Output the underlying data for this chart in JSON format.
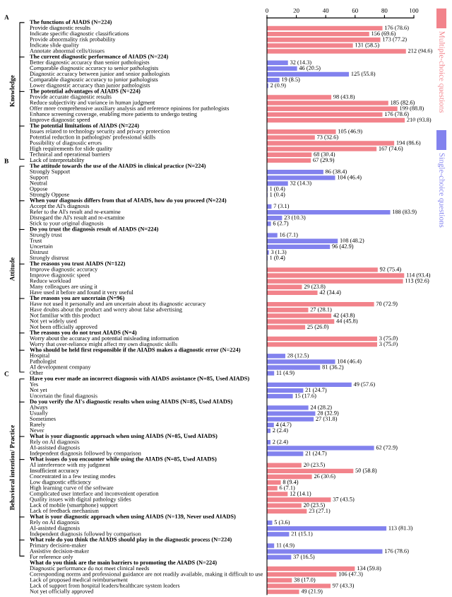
{
  "chart_data": {
    "type": "bar",
    "orientation": "horizontal",
    "categories": [
      "The functions of AIADS (N=224)",
      "Provide diagnostic results",
      "Indicate specific diagnostic classifications",
      "Provide abnormality risk probability",
      "Indicate slide quality",
      "Annotate abnormal cells/tissues",
      "The current diagnostic performance of AIADS (N=224)",
      "Better diagnostic accuracy than senior pathologists",
      "Comparable diagnostic accuracy to senior pathologists",
      "Diagnostic accuracy between junior and senior pathologists",
      "Comparable diagnostic accuracy to junior pathologists",
      "Lower diagnostic accuracy than junior pathologists",
      "The potential advantages of AIADS (N=224)",
      "Provide accurate diagnostic results",
      "Reduce subjectivity and variance in human judgment",
      "Offer more comprehensive auxiliary analysis and reference opinions for pathologists",
      "Enhance screening coverage, enabling more patients to undergo testing",
      "Improve diagnostic speed",
      "The potential limitations of AIADS (N=224)",
      "Issues related to technology security and privacy protection",
      "Potential reduction in pathologists' professional skills",
      "Possibility of diagnostic errors",
      "High requirements for slide quality",
      "Technical and operational barriers",
      "Lack of interpretability",
      "The attitude towards the use of the AIADS in clinical practice (N=224)",
      "Strongly Support",
      "Support",
      "Neutral",
      "Oppose",
      "Strongly Oppose",
      "When your diagnosis differs from that of AIADS, how do you proceed (N=224)",
      "Accept the AI's diagnosis",
      "Refer to the AI's result and re-examine",
      "Disregard the AI's result and re-examine",
      "Stick to your original diagnosis",
      "Do you trust the diagnosis result of AIADS (N=224)",
      "Strongly trust",
      "Trust",
      "Uncertain",
      "Distrust",
      "Strongly distrust",
      "The reasons you trust AIADS (N=122)",
      "Improve diagnostic accuracy",
      "Improve diagnostic speed",
      "Reduce workload",
      "Many colleagues are using it",
      "Have used it before and found it very useful",
      "The reasons you are uncertain (N=96)",
      "Have not used it personally and am uncertain about its diagnostic accuracy",
      "Have doubts about the product and worry about false advertising",
      "Not familiar with this product",
      "Not yet widely used",
      "Not been officially approved",
      "The reasons you do not trust AIADS (N=4)",
      "Worry about the accuracy and potential misleading information",
      "Worry that over-reliance might affect my own diagnostic skills",
      "Who should be held first responsible if the AIADS makes a diagnostic error (N=224)",
      "Hospital",
      "Pathologist",
      "AI development company",
      "Other",
      "Have you ever made an incorrect diagnosis with AIADS assistance (N=85, Used AIADS)",
      "Yes",
      "Not yet",
      "Uncertain the final diagnosis",
      "Do you verify the AI's diagnostic results when using AIADS (N=85, Used AIADS)",
      "Always",
      "Usually",
      "Sometimes",
      "Rarely",
      "Never",
      "What is your diagnostic approach when using AIADS (N=85, Used AIADS)",
      "Rely on AI diagnosis",
      "AI-assisted diagnosis",
      "Independent diagnosis followed by comparison",
      "What issues do you encounter while using the AIADS (N=85, Used AIADS)",
      "AI interference with my judgment",
      "Insufficient accuracy",
      "Concentrated in a few testing modes",
      "Low diagnostic efficiency",
      "High learning curve of the software",
      "Complicated user interface and inconvenient operation",
      "Quality issues with digital pathology slides",
      "Lack of mobile (smartphone) support",
      "Lack of feedback mechanism",
      "What is your diagnostic approach when using AIADS (N=139, Never used AIADS)",
      "Rely on AI diagnosis",
      "AI-assisted diagnosis",
      "Independent diagnosis followed by comparison",
      "What role do you think the AIADS should play in the diagnostic process (N=224)",
      "Primary decision-maker",
      "Assistive decision-maker",
      "For reference only",
      "What do you think are the main barriers to promoting the AIADS (N=224)",
      "Diagnostic performance do not meet clinical needs",
      "Corresponding norms and professional guidance are not readily available, making it difficult to use",
      "Lack of proposed medical reimbursement",
      "Lack of support from hospital leaders/healthcare system leaders",
      "Not yet officially approved"
    ],
    "series": [
      {
        "name": "Multiple-choice questions",
        "color": "#f2838b",
        "values": [
          null,
          78.6,
          69.6,
          77.2,
          58.5,
          94.6,
          null,
          null,
          null,
          null,
          null,
          null,
          null,
          43.8,
          82.6,
          88.8,
          78.6,
          93.8,
          null,
          46.9,
          32.6,
          86.6,
          74.6,
          30.4,
          29.9,
          null,
          null,
          null,
          null,
          null,
          null,
          null,
          null,
          null,
          null,
          null,
          null,
          null,
          null,
          null,
          null,
          null,
          null,
          75.4,
          93.4,
          92.6,
          23.8,
          34.4,
          null,
          72.9,
          28.1,
          43.8,
          45.8,
          26.0,
          null,
          75.0,
          75.0,
          null,
          null,
          null,
          null,
          null,
          null,
          null,
          null,
          null,
          null,
          null,
          null,
          null,
          null,
          null,
          null,
          null,
          null,
          null,
          null,
          23.5,
          58.8,
          30.6,
          9.4,
          7.1,
          14.1,
          43.5,
          23.5,
          27.1,
          null,
          null,
          null,
          null,
          null,
          null,
          null,
          null,
          null,
          59.8,
          47.3,
          17.0,
          43.3,
          21.9
        ],
        "value_labels": [
          null,
          "176 (78.6)",
          "156 (69.6)",
          "173 (77.2)",
          "131 (58.5)",
          "212 (94.6)",
          null,
          null,
          null,
          null,
          null,
          null,
          null,
          "98 (43.8)",
          "185 (82.6)",
          "199 (88.8)",
          "176 (78.6)",
          "210 (93.8)",
          null,
          "105 (46.9)",
          "73 (32.6)",
          "194 (86.6)",
          "167 (74.6)",
          "68 (30.4)",
          "67 (29.9)",
          null,
          null,
          null,
          null,
          null,
          null,
          null,
          null,
          null,
          null,
          null,
          null,
          null,
          null,
          null,
          null,
          null,
          null,
          "92 (75.4)",
          "114 (93.4)",
          "113 (92.6)",
          "29 (23.8)",
          "42 (34.4)",
          null,
          "70 (72.9)",
          "27 (28.1)",
          "42 (43.8)",
          "44 (45.8)",
          "25 (26.0)",
          null,
          "3 (75.0)",
          "3 (75.0)",
          null,
          null,
          null,
          null,
          null,
          null,
          null,
          null,
          null,
          null,
          null,
          null,
          null,
          null,
          null,
          null,
          null,
          null,
          null,
          null,
          "20 (23.5)",
          "50 (58.8)",
          "26 (30.6)",
          "8 (9.4)",
          "6 (7.1)",
          "12 (14.1)",
          "37 (43.5)",
          "20 (23.5)",
          "23 (27.1)",
          null,
          null,
          null,
          null,
          null,
          null,
          null,
          null,
          null,
          "134 (59.8)",
          "106 (47.3)",
          "38 (17.0)",
          "97 (43.3)",
          "49 (21.9)"
        ]
      },
      {
        "name": "Single-choice questions",
        "color": "#8282ee",
        "values": [
          null,
          null,
          null,
          null,
          null,
          null,
          null,
          14.3,
          20.5,
          55.8,
          8.5,
          0.9,
          null,
          null,
          null,
          null,
          null,
          null,
          null,
          null,
          null,
          null,
          null,
          null,
          null,
          null,
          38.4,
          46.4,
          14.3,
          0.4,
          0.4,
          null,
          3.1,
          83.9,
          10.3,
          2.7,
          null,
          7.1,
          48.2,
          42.9,
          1.3,
          0.4,
          null,
          null,
          null,
          null,
          null,
          null,
          null,
          null,
          null,
          null,
          null,
          null,
          null,
          null,
          null,
          null,
          12.5,
          46.4,
          36.2,
          4.9,
          null,
          57.6,
          24.7,
          17.6,
          null,
          28.2,
          32.9,
          31.8,
          4.7,
          2.4,
          null,
          2.4,
          72.9,
          24.7,
          null,
          null,
          null,
          null,
          null,
          null,
          null,
          null,
          null,
          null,
          null,
          3.6,
          81.3,
          15.1,
          null,
          4.9,
          78.6,
          16.5,
          null,
          null,
          null,
          null,
          null,
          null
        ],
        "value_labels": [
          null,
          null,
          null,
          null,
          null,
          null,
          null,
          "32 (14.3)",
          "46 (20.5)",
          "125 (55.8)",
          "19 (8.5)",
          "2 (0.9)",
          null,
          null,
          null,
          null,
          null,
          null,
          null,
          null,
          null,
          null,
          null,
          null,
          null,
          null,
          "86 (38.4)",
          "104 (46.4)",
          "32 (14.3)",
          "1 (0.4)",
          "1 (0.4)",
          null,
          "7 (3.1)",
          "188 (83.9)",
          "23 (10.3)",
          "6 (2.7)",
          null,
          "16 (7.1)",
          "108 (48.2)",
          "96 (42.9)",
          "3 (1.3)",
          "1 (0.4)",
          null,
          null,
          null,
          null,
          null,
          null,
          null,
          null,
          null,
          null,
          null,
          null,
          null,
          null,
          null,
          null,
          "28 (12.5)",
          "104 (46.4)",
          "81 (36.2)",
          "11 (4.9)",
          null,
          "49 (57.6)",
          "21 (24.7)",
          "15 (17.6)",
          null,
          "24 (28.2)",
          "28 (32.9)",
          "27 (31.8)",
          "4 (4.7)",
          "2 (2.4)",
          null,
          "2 (2.4)",
          "62 (72.9)",
          "21 (24.7)",
          null,
          null,
          null,
          null,
          null,
          null,
          null,
          null,
          null,
          null,
          null,
          "5 (3.6)",
          "113 (81.3)",
          "21 (15.1)",
          null,
          "11 (4.9)",
          "176 (78.6)",
          "37 (16.5)",
          null,
          null,
          null,
          null,
          null,
          null
        ]
      }
    ],
    "xlim": [
      0,
      100
    ],
    "xticks": [
      0,
      20,
      40,
      60,
      80,
      100
    ],
    "legend": "right",
    "annotations": [
      "A",
      "Knowledge",
      "B",
      "Attitude",
      "C",
      "Behavioral intention/ Practice"
    ]
  }
}
